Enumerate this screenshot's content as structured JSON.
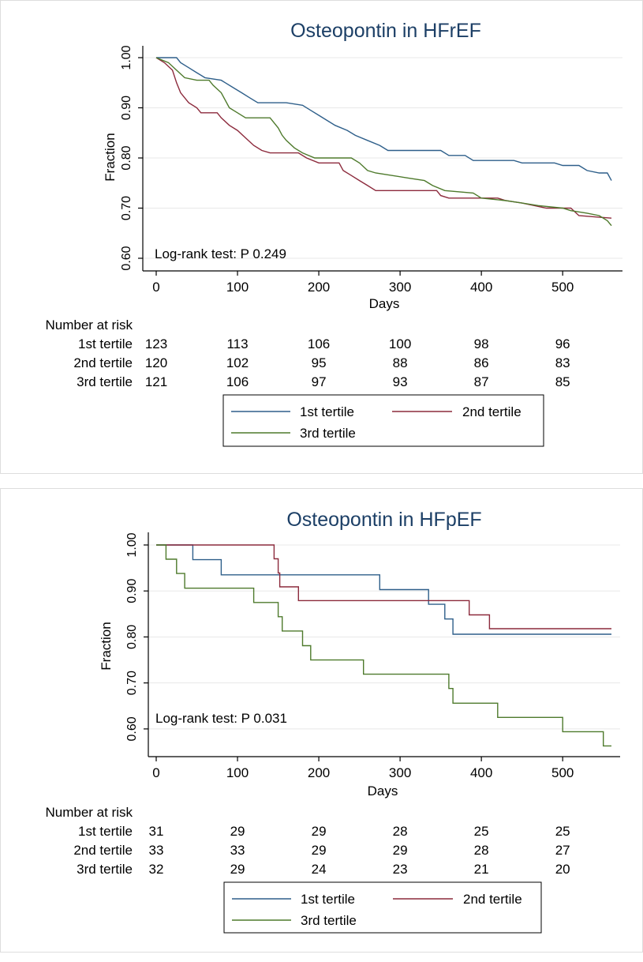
{
  "chart_data": [
    {
      "type": "line",
      "title": "Osteopontin in HFrEF",
      "xlabel": "Days",
      "ylabel": "Fraction",
      "xlim": [
        0,
        560
      ],
      "ylim": [
        0.6,
        1.0
      ],
      "xticks": [
        "0",
        "100",
        "200",
        "300",
        "400",
        "500"
      ],
      "yticks": [
        "0.60",
        "0.70",
        "0.80",
        "0.90",
        "1.00"
      ],
      "grid": true,
      "annotation": "Log-rank test: P 0.249",
      "series": [
        {
          "name": "1st tertile",
          "color": "#2e5f8a",
          "points": [
            [
              0,
              1.0
            ],
            [
              25,
              1.0
            ],
            [
              30,
              0.99
            ],
            [
              40,
              0.98
            ],
            [
              50,
              0.97
            ],
            [
              60,
              0.96
            ],
            [
              80,
              0.955
            ],
            [
              85,
              0.95
            ],
            [
              95,
              0.94
            ],
            [
              105,
              0.93
            ],
            [
              115,
              0.92
            ],
            [
              125,
              0.91
            ],
            [
              160,
              0.91
            ],
            [
              180,
              0.905
            ],
            [
              190,
              0.895
            ],
            [
              200,
              0.885
            ],
            [
              210,
              0.875
            ],
            [
              220,
              0.865
            ],
            [
              235,
              0.855
            ],
            [
              245,
              0.845
            ],
            [
              260,
              0.835
            ],
            [
              275,
              0.825
            ],
            [
              285,
              0.815
            ],
            [
              350,
              0.815
            ],
            [
              360,
              0.805
            ],
            [
              380,
              0.805
            ],
            [
              390,
              0.795
            ],
            [
              440,
              0.795
            ],
            [
              450,
              0.79
            ],
            [
              490,
              0.79
            ],
            [
              500,
              0.785
            ],
            [
              520,
              0.785
            ],
            [
              530,
              0.775
            ],
            [
              545,
              0.77
            ],
            [
              555,
              0.77
            ],
            [
              560,
              0.755
            ]
          ]
        },
        {
          "name": "2nd tertile",
          "color": "#8c2a3c",
          "points": [
            [
              0,
              1.0
            ],
            [
              10,
              0.99
            ],
            [
              20,
              0.975
            ],
            [
              25,
              0.95
            ],
            [
              30,
              0.93
            ],
            [
              40,
              0.91
            ],
            [
              50,
              0.9
            ],
            [
              55,
              0.89
            ],
            [
              75,
              0.89
            ],
            [
              80,
              0.88
            ],
            [
              90,
              0.865
            ],
            [
              100,
              0.855
            ],
            [
              110,
              0.84
            ],
            [
              120,
              0.825
            ],
            [
              130,
              0.815
            ],
            [
              140,
              0.81
            ],
            [
              175,
              0.81
            ],
            [
              185,
              0.8
            ],
            [
              200,
              0.79
            ],
            [
              225,
              0.79
            ],
            [
              230,
              0.775
            ],
            [
              240,
              0.765
            ],
            [
              250,
              0.755
            ],
            [
              260,
              0.745
            ],
            [
              270,
              0.735
            ],
            [
              345,
              0.735
            ],
            [
              350,
              0.725
            ],
            [
              360,
              0.72
            ],
            [
              420,
              0.72
            ],
            [
              430,
              0.715
            ],
            [
              450,
              0.71
            ],
            [
              480,
              0.7
            ],
            [
              510,
              0.7
            ],
            [
              520,
              0.685
            ],
            [
              560,
              0.68
            ]
          ]
        },
        {
          "name": "3rd tertile",
          "color": "#4e7a2c",
          "points": [
            [
              0,
              1.0
            ],
            [
              15,
              0.99
            ],
            [
              25,
              0.975
            ],
            [
              35,
              0.96
            ],
            [
              50,
              0.955
            ],
            [
              65,
              0.955
            ],
            [
              70,
              0.945
            ],
            [
              80,
              0.93
            ],
            [
              90,
              0.9
            ],
            [
              100,
              0.89
            ],
            [
              110,
              0.88
            ],
            [
              140,
              0.88
            ],
            [
              150,
              0.86
            ],
            [
              155,
              0.845
            ],
            [
              160,
              0.835
            ],
            [
              170,
              0.82
            ],
            [
              180,
              0.81
            ],
            [
              195,
              0.8
            ],
            [
              240,
              0.8
            ],
            [
              250,
              0.79
            ],
            [
              260,
              0.775
            ],
            [
              270,
              0.77
            ],
            [
              310,
              0.76
            ],
            [
              330,
              0.755
            ],
            [
              340,
              0.745
            ],
            [
              355,
              0.735
            ],
            [
              390,
              0.73
            ],
            [
              400,
              0.72
            ],
            [
              430,
              0.715
            ],
            [
              450,
              0.71
            ],
            [
              470,
              0.705
            ],
            [
              500,
              0.7
            ],
            [
              510,
              0.695
            ],
            [
              530,
              0.69
            ],
            [
              545,
              0.685
            ],
            [
              555,
              0.675
            ],
            [
              560,
              0.665
            ]
          ]
        }
      ],
      "risk_table": {
        "header": "Number at risk",
        "rows": [
          {
            "label": "1st tertile",
            "values": [
              "123",
              "113",
              "106",
              "100",
              "98",
              "96"
            ]
          },
          {
            "label": "2nd tertile",
            "values": [
              "120",
              "102",
              "95",
              "88",
              "86",
              "83"
            ]
          },
          {
            "label": "3rd tertile",
            "values": [
              "121",
              "106",
              "97",
              "93",
              "87",
              "85"
            ]
          }
        ]
      },
      "legend": [
        "1st tertile",
        "2nd tertile",
        "3rd tertile"
      ]
    },
    {
      "type": "line",
      "title": "Osteopontin in HFpEF",
      "xlabel": "Days",
      "ylabel": "Fraction",
      "xlim": [
        0,
        560
      ],
      "ylim": [
        0.55,
        1.0
      ],
      "xticks": [
        "0",
        "100",
        "200",
        "300",
        "400",
        "500"
      ],
      "yticks": [
        "0.60",
        "0.70",
        "0.80",
        "0.90",
        "1.00"
      ],
      "grid": true,
      "annotation": "Log-rank test: P 0.031",
      "series": [
        {
          "name": "1st tertile",
          "color": "#2e5f8a",
          "points": [
            [
              0,
              1.0
            ],
            [
              45,
              1.0
            ],
            [
              45,
              0.968
            ],
            [
              80,
              0.968
            ],
            [
              80,
              0.935
            ],
            [
              275,
              0.935
            ],
            [
              275,
              0.903
            ],
            [
              335,
              0.903
            ],
            [
              335,
              0.871
            ],
            [
              355,
              0.871
            ],
            [
              355,
              0.839
            ],
            [
              365,
              0.839
            ],
            [
              365,
              0.806
            ],
            [
              560,
              0.806
            ]
          ]
        },
        {
          "name": "2nd tertile",
          "color": "#8c2a3c",
          "points": [
            [
              0,
              1.0
            ],
            [
              145,
              1.0
            ],
            [
              145,
              0.97
            ],
            [
              150,
              0.97
            ],
            [
              150,
              0.939
            ],
            [
              152,
              0.939
            ],
            [
              152,
              0.909
            ],
            [
              175,
              0.909
            ],
            [
              175,
              0.879
            ],
            [
              385,
              0.879
            ],
            [
              385,
              0.848
            ],
            [
              410,
              0.848
            ],
            [
              410,
              0.818
            ],
            [
              560,
              0.818
            ]
          ]
        },
        {
          "name": "3rd tertile",
          "color": "#4e7a2c",
          "points": [
            [
              0,
              1.0
            ],
            [
              12,
              1.0
            ],
            [
              12,
              0.969
            ],
            [
              25,
              0.969
            ],
            [
              25,
              0.938
            ],
            [
              35,
              0.938
            ],
            [
              35,
              0.906
            ],
            [
              120,
              0.906
            ],
            [
              120,
              0.875
            ],
            [
              150,
              0.875
            ],
            [
              150,
              0.844
            ],
            [
              155,
              0.844
            ],
            [
              155,
              0.813
            ],
            [
              180,
              0.813
            ],
            [
              180,
              0.781
            ],
            [
              190,
              0.781
            ],
            [
              190,
              0.75
            ],
            [
              255,
              0.75
            ],
            [
              255,
              0.719
            ],
            [
              360,
              0.719
            ],
            [
              360,
              0.688
            ],
            [
              365,
              0.688
            ],
            [
              365,
              0.656
            ],
            [
              420,
              0.656
            ],
            [
              420,
              0.625
            ],
            [
              500,
              0.625
            ],
            [
              500,
              0.594
            ],
            [
              550,
              0.594
            ],
            [
              550,
              0.563
            ],
            [
              560,
              0.563
            ]
          ]
        }
      ],
      "risk_table": {
        "header": "Number at risk",
        "rows": [
          {
            "label": "1st tertile",
            "values": [
              "31",
              "29",
              "29",
              "28",
              "25",
              "25"
            ]
          },
          {
            "label": "2nd tertile",
            "values": [
              "33",
              "33",
              "29",
              "29",
              "28",
              "27"
            ]
          },
          {
            "label": "3rd tertile",
            "values": [
              "32",
              "29",
              "24",
              "23",
              "21",
              "20"
            ]
          }
        ]
      },
      "legend": [
        "1st tertile",
        "2nd tertile",
        "3rd tertile"
      ]
    }
  ]
}
